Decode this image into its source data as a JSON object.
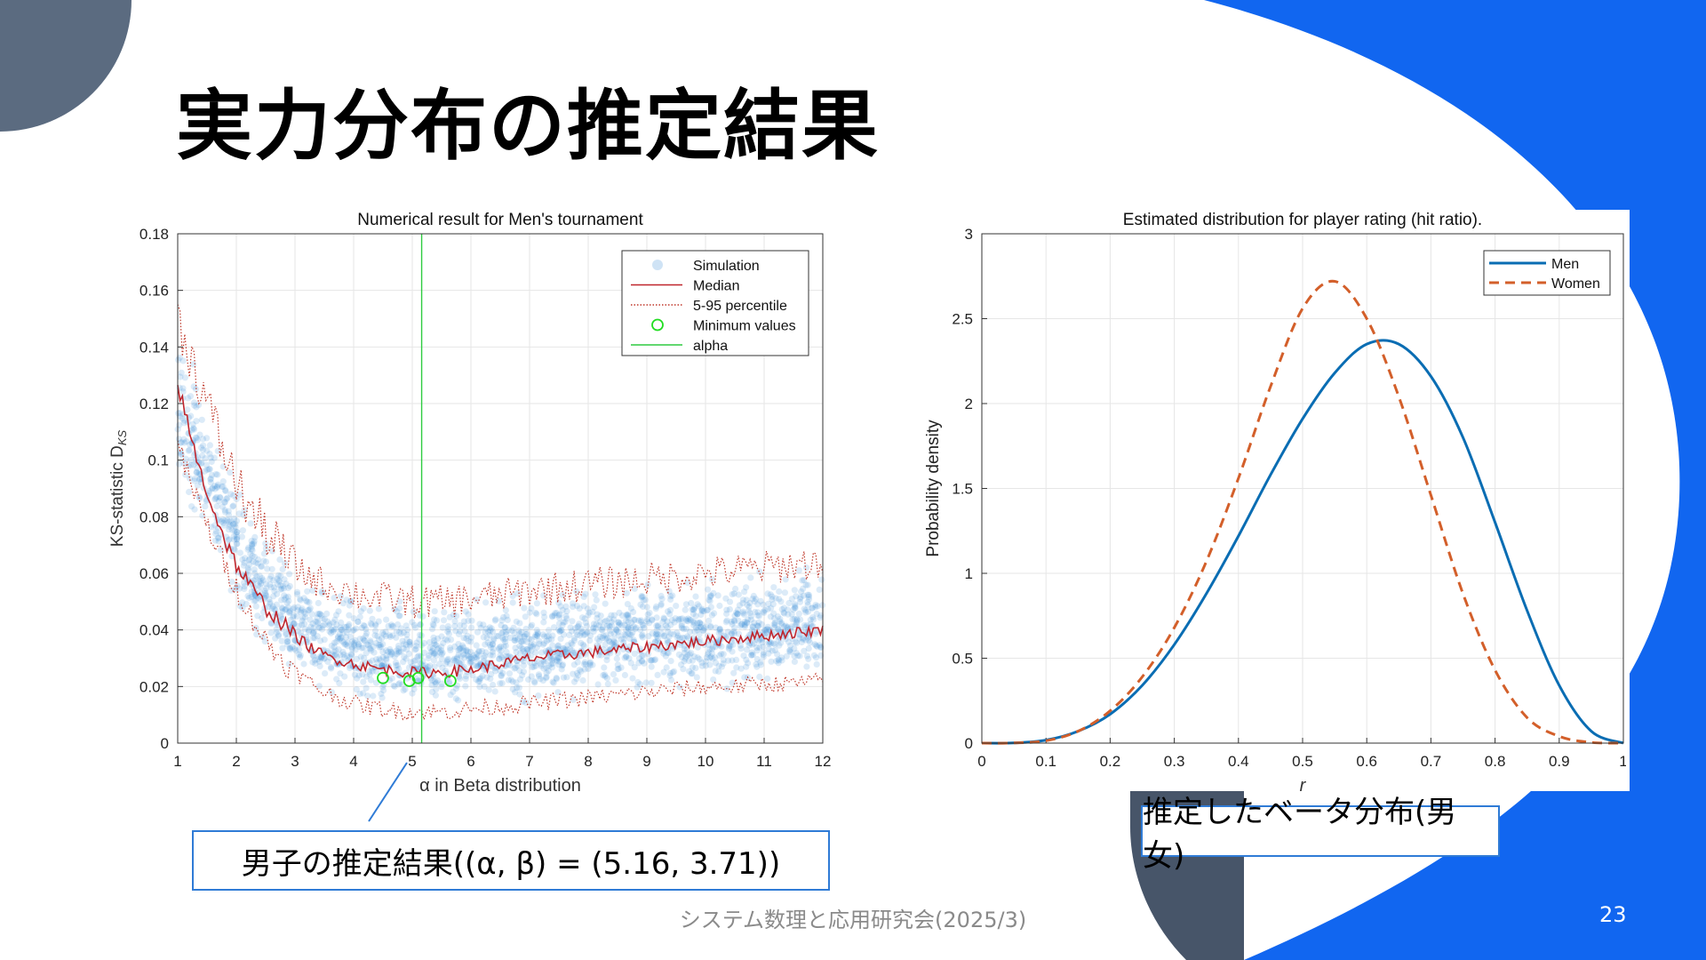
{
  "slide": {
    "title": "実力分布の推定結果",
    "footer": "システム数理と応用研究会(2025/3)",
    "page_number": "23",
    "callout_left": "男子の推定結果((α, β) = (5.16, 3.71))",
    "callout_right": "推定したベータ分布(男女)"
  },
  "colors": {
    "accent_blue": "#1166f0",
    "dark_slate": "#475569",
    "callout_border": "#2f7bd6"
  },
  "chart_data": [
    {
      "type": "scatter",
      "title": "Numerical result for Men's tournament",
      "xlabel": "α in Beta distribution",
      "ylabel": "KS-statistic D",
      "ylabel_subscript": "KS",
      "xlim": [
        1,
        12
      ],
      "ylim": [
        0,
        0.18
      ],
      "xticks": [
        "1",
        "2",
        "3",
        "4",
        "5",
        "6",
        "7",
        "8",
        "9",
        "10",
        "11",
        "12"
      ],
      "yticks": [
        "0",
        "0.02",
        "0.04",
        "0.06",
        "0.08",
        "0.1",
        "0.12",
        "0.14",
        "0.16",
        "0.18"
      ],
      "grid": true,
      "legend_position": "top-right",
      "legend": [
        "Simulation",
        "Median",
        "5-95 percentile",
        "Minimum values",
        "alpha"
      ],
      "alpha_line_x": 5.16,
      "minimum_values": [
        [
          4.5,
          0.023
        ],
        [
          4.95,
          0.022
        ],
        [
          5.1,
          0.023
        ],
        [
          5.65,
          0.022
        ]
      ],
      "median": [
        [
          1.0,
          0.127
        ],
        [
          1.2,
          0.11
        ],
        [
          1.4,
          0.095
        ],
        [
          1.6,
          0.083
        ],
        [
          1.8,
          0.072
        ],
        [
          2.0,
          0.063
        ],
        [
          2.25,
          0.055
        ],
        [
          2.5,
          0.048
        ],
        [
          2.75,
          0.043
        ],
        [
          3.0,
          0.038
        ],
        [
          3.25,
          0.034
        ],
        [
          3.5,
          0.031
        ],
        [
          4.0,
          0.028
        ],
        [
          4.5,
          0.026
        ],
        [
          5.0,
          0.025
        ],
        [
          5.5,
          0.025
        ],
        [
          6.0,
          0.026
        ],
        [
          6.5,
          0.028
        ],
        [
          7.0,
          0.03
        ],
        [
          7.5,
          0.031
        ],
        [
          8.0,
          0.032
        ],
        [
          8.5,
          0.033
        ],
        [
          9.0,
          0.034
        ],
        [
          9.5,
          0.035
        ],
        [
          10.0,
          0.036
        ],
        [
          10.5,
          0.037
        ],
        [
          11.0,
          0.038
        ],
        [
          11.5,
          0.039
        ],
        [
          12.0,
          0.04
        ]
      ],
      "p95": [
        [
          1.0,
          0.15
        ],
        [
          1.25,
          0.135
        ],
        [
          1.5,
          0.12
        ],
        [
          1.75,
          0.105
        ],
        [
          2.0,
          0.092
        ],
        [
          2.25,
          0.082
        ],
        [
          2.5,
          0.075
        ],
        [
          2.75,
          0.068
        ],
        [
          3.0,
          0.062
        ],
        [
          3.5,
          0.056
        ],
        [
          4.0,
          0.053
        ],
        [
          4.5,
          0.051
        ],
        [
          5.0,
          0.05
        ],
        [
          5.5,
          0.05
        ],
        [
          6.0,
          0.051
        ],
        [
          6.5,
          0.052
        ],
        [
          7.0,
          0.054
        ],
        [
          7.5,
          0.055
        ],
        [
          8.0,
          0.056
        ],
        [
          8.5,
          0.057
        ],
        [
          9.0,
          0.058
        ],
        [
          9.5,
          0.059
        ],
        [
          10.0,
          0.06
        ],
        [
          10.5,
          0.061
        ],
        [
          11.0,
          0.062
        ],
        [
          11.5,
          0.063
        ],
        [
          12.0,
          0.064
        ]
      ],
      "p5": [
        [
          1.0,
          0.105
        ],
        [
          1.25,
          0.09
        ],
        [
          1.5,
          0.077
        ],
        [
          1.75,
          0.065
        ],
        [
          2.0,
          0.055
        ],
        [
          2.25,
          0.045
        ],
        [
          2.5,
          0.036
        ],
        [
          2.75,
          0.03
        ],
        [
          3.0,
          0.025
        ],
        [
          3.5,
          0.018
        ],
        [
          4.0,
          0.014
        ],
        [
          4.5,
          0.012
        ],
        [
          5.0,
          0.011
        ],
        [
          5.5,
          0.011
        ],
        [
          6.0,
          0.012
        ],
        [
          6.5,
          0.013
        ],
        [
          7.0,
          0.014
        ],
        [
          7.5,
          0.015
        ],
        [
          8.0,
          0.016
        ],
        [
          8.5,
          0.017
        ],
        [
          9.0,
          0.018
        ],
        [
          9.5,
          0.019
        ],
        [
          10.0,
          0.02
        ],
        [
          10.5,
          0.02
        ],
        [
          11.0,
          0.021
        ],
        [
          11.5,
          0.021
        ],
        [
          12.0,
          0.022
        ]
      ]
    },
    {
      "type": "line",
      "title": "Estimated distribution for player rating (hit ratio).",
      "xlabel": "r",
      "ylabel": "Probability density",
      "xlim": [
        0,
        1
      ],
      "ylim": [
        0,
        3
      ],
      "xticks": [
        "0",
        "0.1",
        "0.2",
        "0.3",
        "0.4",
        "0.5",
        "0.6",
        "0.7",
        "0.8",
        "0.9",
        "1"
      ],
      "yticks": [
        "0",
        "0.5",
        "1",
        "1.5",
        "2",
        "2.5",
        "3"
      ],
      "grid": true,
      "legend_position": "top-right",
      "series": [
        {
          "name": "Men",
          "color": "#0a6db3",
          "dash": "solid",
          "x": [
            0,
            0.05,
            0.1,
            0.15,
            0.2,
            0.25,
            0.3,
            0.35,
            0.4,
            0.45,
            0.5,
            0.55,
            0.6,
            0.65,
            0.7,
            0.75,
            0.8,
            0.85,
            0.9,
            0.95,
            1.0
          ],
          "y": [
            0,
            0.001,
            0.018,
            0.07,
            0.17,
            0.34,
            0.58,
            0.88,
            1.22,
            1.58,
            1.91,
            2.18,
            2.35,
            2.35,
            2.16,
            1.8,
            1.3,
            0.78,
            0.34,
            0.07,
            0
          ]
        },
        {
          "name": "Women",
          "color": "#d35f2a",
          "dash": "dashed",
          "x": [
            0,
            0.05,
            0.1,
            0.15,
            0.2,
            0.25,
            0.3,
            0.35,
            0.4,
            0.45,
            0.5,
            0.55,
            0.6,
            0.65,
            0.7,
            0.75,
            0.8,
            0.85,
            0.9,
            0.95,
            1.0
          ],
          "y": [
            0,
            0.001,
            0.014,
            0.07,
            0.19,
            0.39,
            0.68,
            1.07,
            1.56,
            2.1,
            2.56,
            2.72,
            2.5,
            2.04,
            1.46,
            0.88,
            0.43,
            0.15,
            0.04,
            0.004,
            0
          ]
        }
      ]
    }
  ]
}
